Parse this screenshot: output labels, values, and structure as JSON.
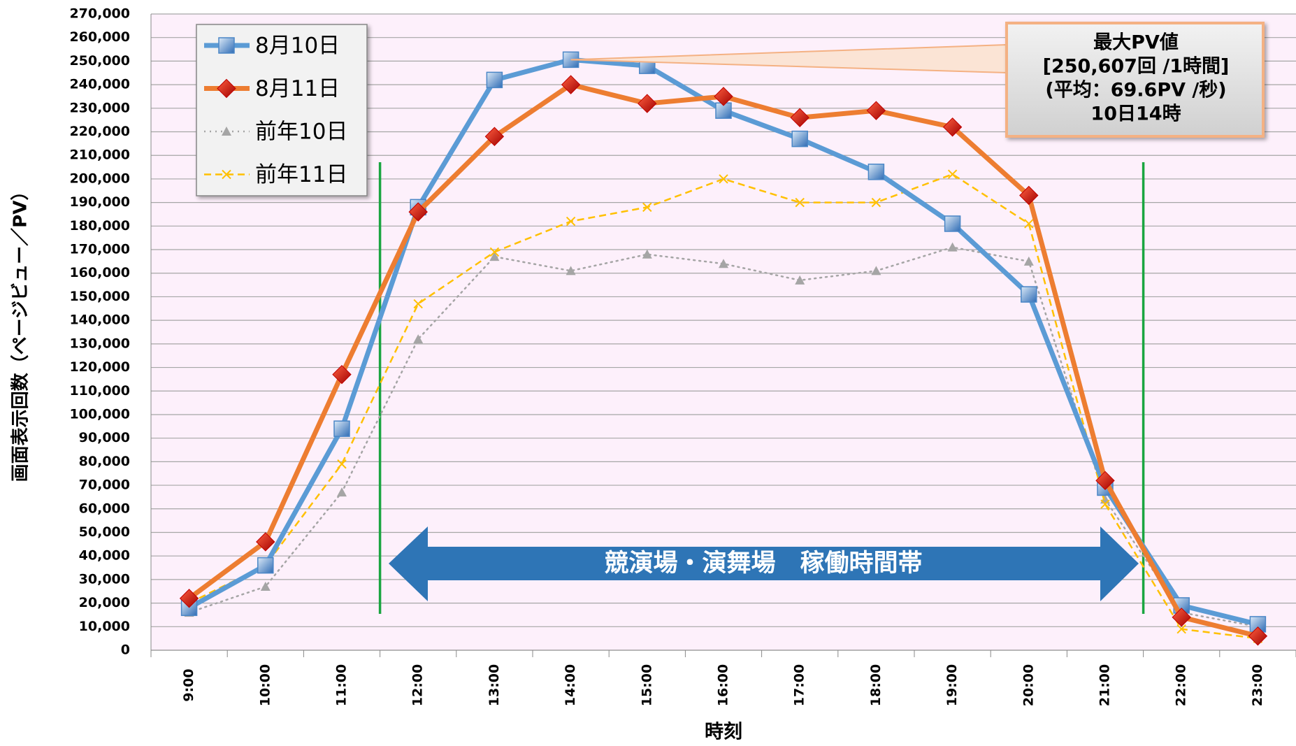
{
  "chart_data": {
    "type": "line",
    "y_label": "画面表示回数（ページビュー／PV）",
    "x_label": "時刻",
    "categories": [
      "9:00",
      "10:00",
      "11:00",
      "12:00",
      "13:00",
      "14:00",
      "15:00",
      "16:00",
      "17:00",
      "18:00",
      "19:00",
      "20:00",
      "21:00",
      "22:00",
      "23:00"
    ],
    "series": [
      {
        "name": "8月10日",
        "color": "#5b9bd5",
        "style": "solid",
        "marker": "square",
        "values": [
          18000,
          36000,
          94000,
          188000,
          242000,
          250607,
          248000,
          229000,
          217000,
          203000,
          181000,
          151000,
          69000,
          19000,
          11000
        ]
      },
      {
        "name": "8月11日",
        "color": "#ed7d31",
        "style": "solid",
        "marker": "diamond",
        "values": [
          22000,
          46000,
          117000,
          186000,
          218000,
          240000,
          232000,
          235000,
          226000,
          229000,
          222000,
          193000,
          72000,
          14000,
          6000
        ]
      },
      {
        "name": "前年10日",
        "color": "#a5a5a5",
        "style": "dotted",
        "marker": "triangle",
        "values": [
          16000,
          27000,
          67000,
          132000,
          167000,
          161000,
          168000,
          164000,
          157000,
          161000,
          171000,
          165000,
          64000,
          16000,
          10000
        ]
      },
      {
        "name": "前年11日",
        "color": "#ffc000",
        "style": "dashed",
        "marker": "x",
        "values": [
          20000,
          36000,
          79000,
          147000,
          169000,
          182000,
          188000,
          200000,
          190000,
          190000,
          202000,
          181000,
          62000,
          9000,
          5000
        ]
      }
    ],
    "ylim": [
      0,
      270000
    ],
    "yticks": [
      0,
      {
        "value": 10000,
        "label": "10,000"
      },
      {
        "value": 20000,
        "label": "20,000"
      },
      {
        "value": 30000,
        "label": "30,000"
      },
      {
        "value": 40000,
        "label": "40,000"
      },
      {
        "value": 50000,
        "label": "50,000"
      },
      {
        "value": 60000,
        "label": "60,000"
      },
      {
        "value": 70000,
        "label": "70,000"
      },
      {
        "value": 80000,
        "label": "80,000"
      },
      {
        "value": 90000,
        "label": "90,000"
      },
      {
        "value": 100000,
        "label": "100,000"
      },
      {
        "value": 110000,
        "label": "110,000"
      },
      {
        "value": 120000,
        "label": "120,000"
      },
      {
        "value": 130000,
        "label": "130,000"
      },
      {
        "value": 140000,
        "label": "140,000"
      },
      {
        "value": 150000,
        "label": "150,000"
      },
      {
        "value": 160000,
        "label": "160,000"
      },
      {
        "value": 170000,
        "label": "170,000"
      },
      {
        "value": 180000,
        "label": "180,000"
      },
      {
        "value": 190000,
        "label": "190,000"
      },
      {
        "value": 200000,
        "label": "200,000"
      },
      {
        "value": 210000,
        "label": "210,000"
      },
      {
        "value": 220000,
        "label": "220,000"
      },
      {
        "value": 230000,
        "label": "230,000"
      },
      {
        "value": 240000,
        "label": "240,000"
      },
      {
        "value": 250000,
        "label": "250,000"
      },
      {
        "value": 260000,
        "label": "260,000"
      },
      {
        "value": 270000,
        "label": "270,000"
      }
    ],
    "grid": true,
    "legend": "upper left",
    "callout": [
      "最大PV値",
      "[250,607回 /1時間]",
      "(平均：69.6PV /秒)",
      "10日14時"
    ],
    "band_label": "競演場・演舞場　稼働時間帯"
  }
}
